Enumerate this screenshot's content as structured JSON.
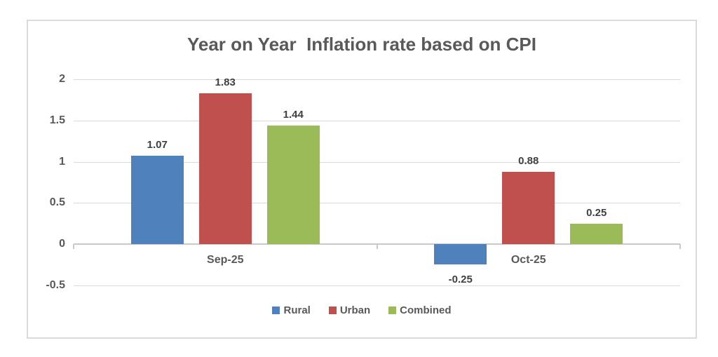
{
  "chart_data": {
    "type": "bar",
    "title": "Year on Year  Inflation rate based on CPI",
    "categories": [
      "Sep-25",
      "Oct-25"
    ],
    "series": [
      {
        "name": "Rural",
        "color": "#4F81BD",
        "values": [
          1.07,
          -0.25
        ]
      },
      {
        "name": "Urban",
        "color": "#C0504D",
        "values": [
          1.83,
          0.88
        ]
      },
      {
        "name": "Combined",
        "color": "#9BBB59",
        "values": [
          1.44,
          0.25
        ]
      }
    ],
    "data_labels": [
      [
        "1.07",
        "-0.25"
      ],
      [
        "1.83",
        "0.88"
      ],
      [
        "1.44",
        "0.25"
      ]
    ],
    "y_axis": {
      "min": -0.5,
      "max": 2,
      "ticks": [
        {
          "label": "2",
          "value": 2
        },
        {
          "label": "1.5",
          "value": 1.5
        },
        {
          "label": "1",
          "value": 1
        },
        {
          "label": "0.5",
          "value": 0.5
        },
        {
          "label": "0",
          "value": 0
        },
        {
          "label": "-0.5",
          "value": -0.5
        }
      ]
    },
    "xlabel": "",
    "ylabel": "",
    "grid": true,
    "legend_position": "bottom",
    "colors": {
      "grid": "#d9d9d9",
      "axis": "#c9c9c9",
      "axis_text": "#595959",
      "data_label_text": "#404040",
      "frame_border": "#dadada",
      "background": "#ffffff"
    }
  }
}
